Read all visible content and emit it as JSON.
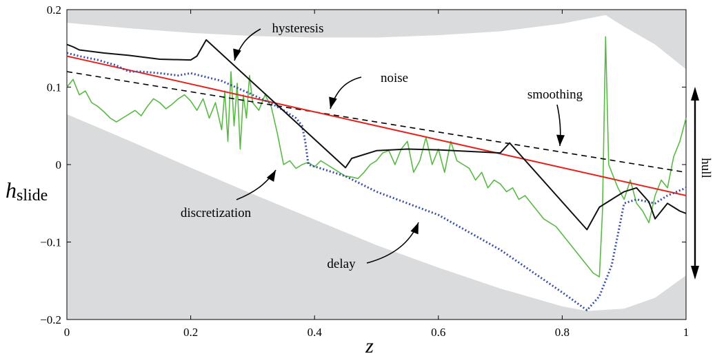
{
  "chart_data": {
    "type": "line",
    "xlabel": "z",
    "ylabel_main": "h",
    "ylabel_sub": "slide",
    "xlim": [
      0,
      1
    ],
    "ylim": [
      -0.2,
      0.2
    ],
    "xticks": [
      0,
      0.2,
      0.4,
      0.6,
      0.8,
      1
    ],
    "xtick_labels": [
      "0",
      "0.2",
      "0.4",
      "0.6",
      "0.8",
      "1"
    ],
    "yticks": [
      -0.2,
      -0.1,
      0,
      0.1,
      0.2
    ],
    "ytick_labels": [
      "−0.2",
      "−0.1",
      "0",
      "0.1",
      "0.2"
    ],
    "grid": false,
    "colors": {
      "hull_fill": "#dadbdc",
      "smoothing": "#000000",
      "noise": "#e8211c",
      "hysteresis": "#111111",
      "discretization_curve": "#58b944",
      "delay": "#3a4fa8"
    },
    "hull_upper": {
      "x": [
        0,
        0.1,
        0.2,
        0.3,
        0.4,
        0.5,
        0.6,
        0.7,
        0.8,
        0.87,
        0.9,
        0.95,
        1.0
      ],
      "y": [
        0.183,
        0.176,
        0.17,
        0.166,
        0.164,
        0.164,
        0.167,
        0.172,
        0.182,
        0.193,
        0.178,
        0.155,
        0.123
      ]
    },
    "hull_lower": {
      "x": [
        0,
        0.1,
        0.2,
        0.3,
        0.4,
        0.5,
        0.6,
        0.7,
        0.8,
        0.84,
        0.9,
        0.95,
        1.0
      ],
      "y": [
        0.065,
        0.031,
        -0.004,
        -0.038,
        -0.071,
        -0.104,
        -0.133,
        -0.16,
        -0.183,
        -0.189,
        -0.186,
        -0.172,
        -0.143
      ]
    },
    "series": [
      {
        "key": "smoothing",
        "x": [
          0,
          1
        ],
        "y": [
          0.12,
          -0.01
        ]
      },
      {
        "key": "noise",
        "x": [
          0,
          1
        ],
        "y": [
          0.14,
          -0.04
        ]
      },
      {
        "key": "hysteresis",
        "x": [
          0,
          0.01,
          0.02,
          0.06,
          0.1,
          0.15,
          0.2,
          0.21,
          0.225,
          0.45,
          0.46,
          0.5,
          0.55,
          0.6,
          0.65,
          0.7,
          0.715,
          0.84,
          0.86,
          0.88,
          0.9,
          0.92,
          0.94,
          0.95,
          0.96,
          0.97,
          0.98,
          0.99,
          1.0
        ],
        "y": [
          0.155,
          0.152,
          0.148,
          0.144,
          0.141,
          0.136,
          0.135,
          0.14,
          0.161,
          -0.004,
          0.008,
          0.018,
          0.02,
          0.019,
          0.017,
          0.015,
          0.028,
          -0.084,
          -0.055,
          -0.045,
          -0.035,
          -0.03,
          -0.048,
          -0.07,
          -0.06,
          -0.05,
          -0.055,
          -0.06,
          -0.063
        ]
      },
      {
        "key": "delay",
        "x": [
          0,
          0.02,
          0.05,
          0.08,
          0.1,
          0.12,
          0.15,
          0.18,
          0.2,
          0.25,
          0.3,
          0.33,
          0.35,
          0.37,
          0.38,
          0.385,
          0.39,
          0.45,
          0.5,
          0.6,
          0.7,
          0.8,
          0.84,
          0.86,
          0.88,
          0.9,
          0.92,
          0.95,
          0.97,
          1.0
        ],
        "y": [
          0.144,
          0.14,
          0.135,
          0.128,
          0.12,
          0.12,
          0.118,
          0.115,
          0.118,
          0.108,
          0.09,
          0.079,
          0.07,
          0.06,
          0.05,
          0.03,
          0.0,
          -0.015,
          -0.035,
          -0.065,
          -0.11,
          -0.165,
          -0.188,
          -0.17,
          -0.13,
          -0.05,
          -0.045,
          -0.05,
          -0.04,
          -0.03
        ]
      },
      {
        "key": "discretization_curve",
        "x": [
          0,
          0.01,
          0.02,
          0.03,
          0.04,
          0.05,
          0.06,
          0.07,
          0.08,
          0.09,
          0.1,
          0.11,
          0.12,
          0.13,
          0.14,
          0.15,
          0.16,
          0.17,
          0.18,
          0.19,
          0.2,
          0.21,
          0.22,
          0.23,
          0.24,
          0.25,
          0.255,
          0.26,
          0.265,
          0.27,
          0.275,
          0.28,
          0.285,
          0.29,
          0.295,
          0.3,
          0.31,
          0.32,
          0.33,
          0.34,
          0.35,
          0.36,
          0.37,
          0.38,
          0.39,
          0.4,
          0.41,
          0.42,
          0.43,
          0.44,
          0.45,
          0.46,
          0.47,
          0.48,
          0.49,
          0.5,
          0.51,
          0.52,
          0.53,
          0.54,
          0.55,
          0.56,
          0.57,
          0.58,
          0.59,
          0.6,
          0.61,
          0.62,
          0.63,
          0.64,
          0.65,
          0.66,
          0.67,
          0.68,
          0.69,
          0.7,
          0.71,
          0.72,
          0.73,
          0.74,
          0.75,
          0.76,
          0.77,
          0.78,
          0.79,
          0.8,
          0.81,
          0.82,
          0.83,
          0.84,
          0.85,
          0.86,
          0.865,
          0.87,
          0.875,
          0.88,
          0.89,
          0.9,
          0.91,
          0.92,
          0.93,
          0.94,
          0.95,
          0.96,
          0.97,
          0.98,
          0.99,
          1.0
        ],
        "y": [
          0.1,
          0.11,
          0.09,
          0.095,
          0.08,
          0.075,
          0.068,
          0.06,
          0.055,
          0.06,
          0.065,
          0.07,
          0.063,
          0.075,
          0.085,
          0.08,
          0.072,
          0.078,
          0.085,
          0.09,
          0.082,
          0.07,
          0.085,
          0.06,
          0.08,
          0.045,
          0.095,
          0.03,
          0.12,
          0.05,
          0.105,
          0.02,
          0.09,
          0.06,
          0.115,
          0.08,
          0.07,
          0.09,
          0.075,
          0.04,
          0.0,
          0.005,
          -0.005,
          0.0,
          0.003,
          -0.003,
          0.005,
          0.0,
          -0.005,
          -0.01,
          -0.015,
          -0.016,
          -0.018,
          -0.01,
          0.0,
          0.005,
          0.015,
          0.018,
          0.0,
          0.02,
          0.03,
          -0.01,
          0.005,
          0.035,
          0.0,
          0.02,
          -0.01,
          0.03,
          0.005,
          0.0,
          -0.005,
          -0.02,
          -0.01,
          -0.03,
          -0.02,
          -0.025,
          -0.035,
          -0.03,
          -0.045,
          -0.04,
          -0.05,
          -0.06,
          -0.07,
          -0.075,
          -0.08,
          -0.09,
          -0.1,
          -0.11,
          -0.12,
          -0.13,
          -0.14,
          -0.145,
          -0.06,
          0.165,
          0.0,
          -0.01,
          -0.03,
          -0.045,
          -0.02,
          -0.05,
          -0.06,
          -0.075,
          -0.04,
          -0.02,
          -0.03,
          0.01,
          0.03,
          0.06
        ]
      }
    ],
    "annotations": {
      "hysteresis": "hysteresis",
      "noise": "noise",
      "smoothing": "smoothing",
      "discretization": "discretization",
      "delay": "delay",
      "hull": "hull"
    }
  }
}
